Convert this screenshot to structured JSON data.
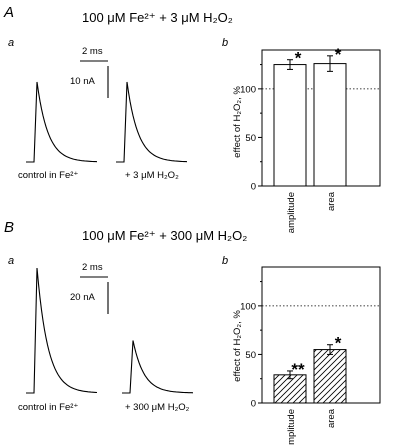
{
  "panels": [
    {
      "letter": "A",
      "title": "100 μM Fe²⁺ + 3 μM H₂O₂",
      "sub_a": "a",
      "sub_b": "b",
      "scale_time": "2 ms",
      "scale_current": "10 nA",
      "label_control": "control in Fe²⁺",
      "label_treated": "+ 3 μM  H₂O₂",
      "trace_peak_relative": [
        1.0,
        1.0
      ]
    },
    {
      "letter": "B",
      "title": "100 μM Fe²⁺ + 300 μM H₂O₂",
      "sub_a": "a",
      "sub_b": "b",
      "scale_time": "2 ms",
      "scale_current": "20 nA",
      "label_control": "control in Fe²⁺",
      "label_treated": "+ 300 μM  H₂O₂",
      "trace_peak_relative": [
        1.0,
        0.42
      ]
    }
  ],
  "chart_data": [
    {
      "type": "bar",
      "panel": "A-b",
      "ylabel": "effect of H₂O₂, %",
      "categories": [
        "amplitude",
        "area"
      ],
      "values": [
        125,
        126
      ],
      "errors": [
        5,
        8
      ],
      "significance": [
        "*",
        "*"
      ],
      "ylim": [
        0,
        140
      ],
      "yticks": [
        0,
        50,
        100
      ],
      "reference_line": 100,
      "bar_fill": "white"
    },
    {
      "type": "bar",
      "panel": "B-b",
      "ylabel": "effect of H₂O₂, %",
      "categories": [
        "amplitude",
        "area"
      ],
      "values": [
        29,
        55
      ],
      "errors": [
        4,
        5
      ],
      "significance": [
        "**",
        "*"
      ],
      "ylim": [
        0,
        140
      ],
      "yticks": [
        0,
        50,
        100
      ],
      "reference_line": 100,
      "bar_fill": "hatched"
    }
  ]
}
